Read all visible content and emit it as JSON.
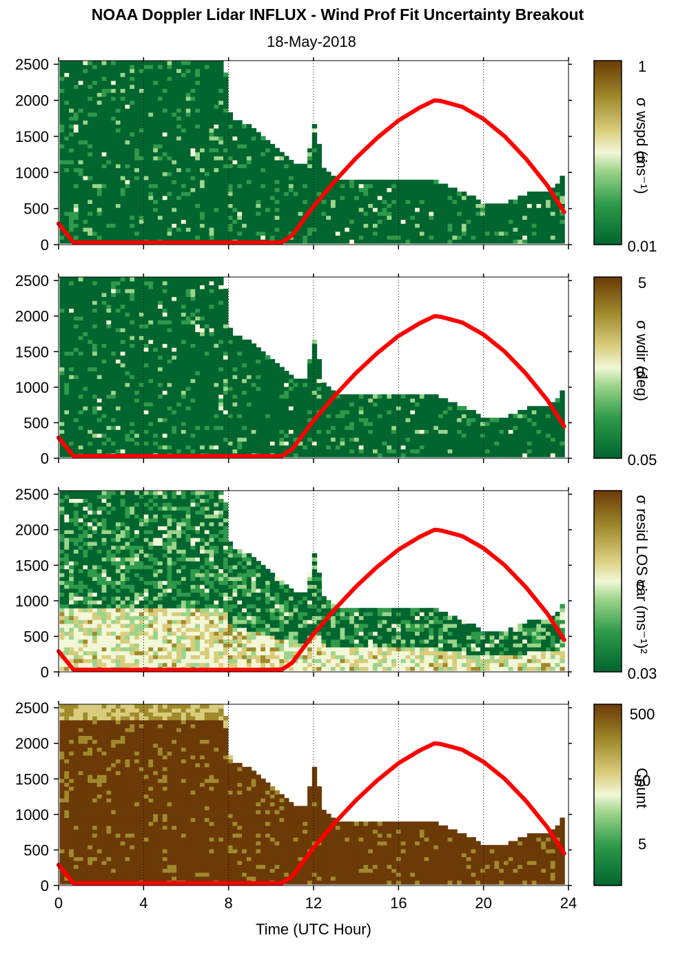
{
  "title": "NOAA Doppler Lidar INFLUX - Wind Prof Fit Uncertainty Breakout",
  "subtitle": "18-May-2018",
  "colors": {
    "curve": "#ff0000",
    "dark_green": "#00652f",
    "mid_green": "#2e9a4a",
    "light_green": "#9bd48a",
    "pale": "#f2f7d7",
    "tan": "#d9cc7c",
    "olive": "#a08a2c",
    "brown": "#6b3a06"
  },
  "chart_data": [
    {
      "type": "heatmap",
      "panel": 1,
      "xlabel": "",
      "ylabel": "",
      "xlim": [
        0,
        24
      ],
      "ylim": [
        0,
        2550
      ],
      "xticks": [
        0,
        4,
        8,
        12,
        16,
        20,
        24
      ],
      "yticks": [
        0,
        500,
        1000,
        1500,
        2000,
        2500
      ],
      "vertical_dotted_gridlines_x": [
        4,
        8,
        12,
        16,
        20,
        24
      ],
      "colorbar": {
        "label": "σ wspd (ms⁻¹)",
        "ticks": [
          "1",
          "0.",
          "0.01"
        ],
        "scale": "log",
        "range": [
          0.01,
          1
        ]
      },
      "data_top_height_profile": {
        "x": [
          0,
          2,
          4,
          6,
          7.7,
          8,
          9,
          10,
          10.5,
          11,
          11.5,
          12,
          12.3,
          13,
          14,
          15,
          16,
          17,
          18,
          19,
          19.8,
          20,
          21,
          22,
          23,
          23.5,
          23.8
        ],
        "y": [
          2500,
          2500,
          2500,
          2500,
          2500,
          1750,
          1600,
          1350,
          1200,
          1100,
          1100,
          1700,
          1050,
          900,
          850,
          850,
          900,
          900,
          820,
          700,
          560,
          560,
          560,
          700,
          700,
          850,
          1200
        ]
      },
      "dominant_value": "low (dark green, ~0.01)",
      "red_curve": {
        "x": [
          0,
          0.7,
          10.5,
          11,
          12,
          13,
          14,
          15,
          16,
          17,
          17.7,
          18,
          19,
          20,
          21,
          22,
          23,
          23.8
        ],
        "y": [
          290,
          30,
          30,
          130,
          530,
          880,
          1200,
          1480,
          1720,
          1900,
          2000,
          1990,
          1910,
          1740,
          1500,
          1190,
          820,
          450
        ]
      }
    },
    {
      "type": "heatmap",
      "panel": 2,
      "xlabel": "",
      "ylabel": "",
      "xlim": [
        0,
        24
      ],
      "ylim": [
        0,
        2550
      ],
      "xticks": [
        0,
        4,
        8,
        12,
        16,
        20,
        24
      ],
      "yticks": [
        0,
        500,
        1000,
        1500,
        2000,
        2500
      ],
      "vertical_dotted_gridlines_x": [
        4,
        8,
        12,
        16,
        20,
        24
      ],
      "colorbar": {
        "label": "σ wdir (deg)",
        "ticks": [
          "5",
          "0.",
          "0.05"
        ],
        "scale": "log",
        "range": [
          0.05,
          5
        ]
      },
      "data_top_height_profile": {
        "x": [
          0,
          2,
          4,
          6,
          7.7,
          8,
          9,
          10,
          10.5,
          11,
          11.5,
          12,
          12.3,
          13,
          14,
          15,
          16,
          17,
          18,
          19,
          19.8,
          20,
          21,
          22,
          23,
          23.5,
          23.8
        ],
        "y": [
          2500,
          2500,
          2500,
          2500,
          2500,
          1750,
          1600,
          1350,
          1200,
          1100,
          1100,
          1700,
          1050,
          900,
          850,
          850,
          900,
          900,
          820,
          700,
          560,
          560,
          560,
          700,
          700,
          850,
          1200
        ]
      },
      "dominant_value": "low (dark green, ~0.05)",
      "red_curve": {
        "x": [
          0,
          0.7,
          10.5,
          11,
          12,
          13,
          14,
          15,
          16,
          17,
          17.7,
          18,
          19,
          20,
          21,
          22,
          23,
          23.8
        ],
        "y": [
          290,
          30,
          30,
          130,
          530,
          880,
          1200,
          1480,
          1720,
          1900,
          2000,
          1990,
          1910,
          1740,
          1500,
          1190,
          820,
          450
        ]
      }
    },
    {
      "type": "heatmap",
      "panel": 3,
      "xlabel": "",
      "ylabel": "",
      "xlim": [
        0,
        24
      ],
      "ylim": [
        0,
        2550
      ],
      "xticks": [
        0,
        4,
        8,
        12,
        16,
        20,
        24
      ],
      "yticks": [
        0,
        500,
        1000,
        1500,
        2000,
        2500
      ],
      "vertical_dotted_gridlines_x": [
        4,
        8,
        12,
        16,
        20,
        24
      ],
      "colorbar": {
        "label": "σ resid LOS var (ms⁻¹)²",
        "ticks": [
          "",
          "0.",
          "0.03"
        ],
        "scale": "log",
        "range": [
          0.03,
          3
        ]
      },
      "data_top_height_profile": {
        "x": [
          0,
          2,
          4,
          6,
          7.7,
          8,
          9,
          10,
          10.5,
          11,
          11.5,
          12,
          12.3,
          13,
          14,
          15,
          16,
          17,
          18,
          19,
          19.8,
          20,
          21,
          22,
          23,
          23.5,
          23.8
        ],
        "y": [
          2500,
          2500,
          2500,
          2500,
          2500,
          1750,
          1600,
          1350,
          1200,
          1100,
          1100,
          1700,
          1050,
          900,
          850,
          850,
          900,
          900,
          820,
          700,
          560,
          560,
          560,
          700,
          700,
          850,
          1200
        ]
      },
      "dominant_value": "mixed: green aloft, pale/tan near surface",
      "red_curve": {
        "x": [
          0,
          0.7,
          10.5,
          11,
          12,
          13,
          14,
          15,
          16,
          17,
          17.7,
          18,
          19,
          20,
          21,
          22,
          23,
          23.8
        ],
        "y": [
          290,
          30,
          30,
          130,
          530,
          880,
          1200,
          1480,
          1720,
          1900,
          2000,
          1990,
          1910,
          1740,
          1500,
          1190,
          820,
          450
        ]
      }
    },
    {
      "type": "heatmap",
      "panel": 4,
      "xlabel": "Time (UTC Hour)",
      "ylabel": "",
      "xlim": [
        0,
        24
      ],
      "ylim": [
        0,
        2550
      ],
      "xticks": [
        0,
        4,
        8,
        12,
        16,
        20,
        24
      ],
      "yticks": [
        0,
        500,
        1000,
        1500,
        2000,
        2500
      ],
      "vertical_dotted_gridlines_x": [
        4,
        8,
        12,
        16,
        20,
        24
      ],
      "colorbar": {
        "label": "Count",
        "ticks": [
          "500",
          "50",
          "5"
        ],
        "scale": "log",
        "range": [
          1,
          700
        ]
      },
      "data_top_height_profile": {
        "x": [
          0,
          2,
          4,
          6,
          7.7,
          8,
          9,
          10,
          10.5,
          11,
          11.5,
          12,
          12.3,
          13,
          14,
          15,
          16,
          17,
          18,
          19,
          19.8,
          20,
          21,
          22,
          23,
          23.5,
          23.8
        ],
        "y": [
          2500,
          2500,
          2500,
          2500,
          2500,
          1750,
          1600,
          1350,
          1200,
          1100,
          1100,
          1700,
          1050,
          900,
          850,
          850,
          900,
          900,
          820,
          700,
          560,
          560,
          560,
          700,
          700,
          850,
          1200
        ]
      },
      "dominant_value": "high (dark brown, ~500)",
      "red_curve": {
        "x": [
          0,
          0.7,
          10.5,
          11,
          12,
          13,
          14,
          15,
          16,
          17,
          17.7,
          18,
          19,
          20,
          21,
          22,
          23,
          23.8
        ],
        "y": [
          290,
          30,
          30,
          130,
          530,
          880,
          1200,
          1480,
          1720,
          1900,
          2000,
          1990,
          1910,
          1740,
          1500,
          1190,
          820,
          450
        ]
      }
    }
  ]
}
